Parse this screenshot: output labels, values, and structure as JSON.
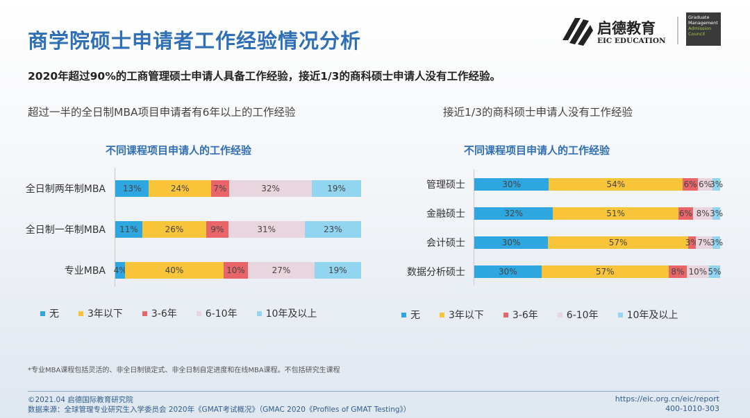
{
  "header": {
    "title": "商学院硕士申请者工作经验情况分析",
    "summary": "2020年超过90%的工商管理硕士申请人具备工作经验，接近1/3的商科硕士申请人没有工作经验。"
  },
  "logo": {
    "brand_cn": "启德教育",
    "brand_en": "EIC EDUCATION",
    "partner": "Graduate Management Admission Council"
  },
  "left": {
    "subtitle": "超过一半的全日制MBA项目申请者有6年以上的工作经验"
  },
  "right": {
    "subtitle": "接近1/3的商科硕士申请人没有工作经验"
  },
  "colors": {
    "none": "#2ea6df",
    "lt3": "#f8c43a",
    "y3_6": "#e9656a",
    "y6_10": "#e9d5dd",
    "y10p": "#92d5f1"
  },
  "chart_data": [
    {
      "type": "bar",
      "orientation": "horizontal",
      "stacked": true,
      "title": "不同课程项目申请人的工作经验",
      "categories": [
        "全日制两年制MBA",
        "全日制一年制MBA",
        "专业MBA"
      ],
      "series": [
        {
          "name": "无",
          "values": [
            13,
            11,
            4
          ]
        },
        {
          "name": "3年以下",
          "values": [
            24,
            26,
            40
          ]
        },
        {
          "name": "3-6年",
          "values": [
            7,
            9,
            10
          ]
        },
        {
          "name": "6-10年",
          "values": [
            32,
            31,
            27
          ]
        },
        {
          "name": "10年及以上",
          "values": [
            19,
            23,
            19
          ]
        }
      ],
      "legend": "bottom"
    },
    {
      "type": "bar",
      "orientation": "horizontal",
      "stacked": true,
      "title": "不同课程项目申请人的工作经验",
      "categories": [
        "管理硕士",
        "金融硕士",
        "会计硕士",
        "数据分析硕士"
      ],
      "series": [
        {
          "name": "无",
          "values": [
            30,
            32,
            30,
            30
          ]
        },
        {
          "name": "3年以下",
          "values": [
            54,
            51,
            57,
            57
          ]
        },
        {
          "name": "3-6年",
          "values": [
            6,
            6,
            3,
            8
          ]
        },
        {
          "name": "6-10年",
          "values": [
            6,
            8,
            7,
            10
          ]
        },
        {
          "name": "10年及以上",
          "values": [
            3,
            3,
            3,
            5
          ]
        }
      ],
      "legend": "bottom"
    }
  ],
  "footer": {
    "note": "*专业MBA课程包括灵活的、非全日制锁定式、非全日制自定进度和在线MBA课程。不包括研究生课程",
    "copyright": "©2021.04 启德国际教育研究院",
    "source": "数据来源：全球管理专业研究生入学委员会 2020年《GMAT考试概况》（GMAC 2020《Profiles of GMAT Testing》）",
    "url": "https://eic.org.cn/eic/report",
    "phone": "400-1010-303"
  }
}
